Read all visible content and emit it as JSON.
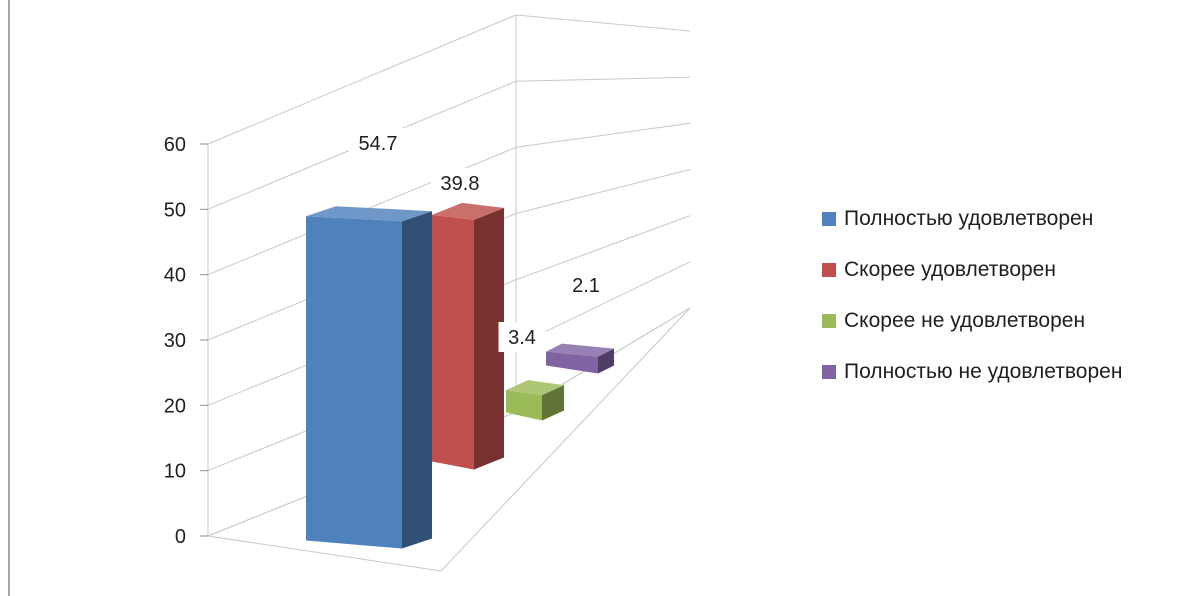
{
  "chart_data": {
    "type": "bar",
    "title": "",
    "xlabel": "",
    "ylabel": "",
    "ylim": [
      0,
      60
    ],
    "ticks": [
      0,
      10,
      20,
      30,
      40,
      50,
      60
    ],
    "categories": [
      "Полностью удовлетворен",
      "Скорее удовлетворен",
      "Скорее не удовлетворен",
      "Полностью не удовлетворен"
    ],
    "values": [
      54.7,
      39.8,
      3.4,
      2.1
    ],
    "data_labels": [
      "54.7",
      "39.8",
      "3.4",
      "2.1"
    ],
    "colors": [
      "#4f81bd",
      "#c0504d",
      "#9bbb59",
      "#8064a2"
    ],
    "legend_position": "right",
    "grid": true,
    "style": "3d-perspective-columns"
  },
  "legend": {
    "items": [
      {
        "label": "Полностью удовлетворен",
        "color": "#4f81bd"
      },
      {
        "label": "Скорее удовлетворен",
        "color": "#c0504d"
      },
      {
        "label": "Скорее не удовлетворен",
        "color": "#9bbb59"
      },
      {
        "label": "Полностью не удовлетворен",
        "color": "#8064a2"
      }
    ]
  }
}
